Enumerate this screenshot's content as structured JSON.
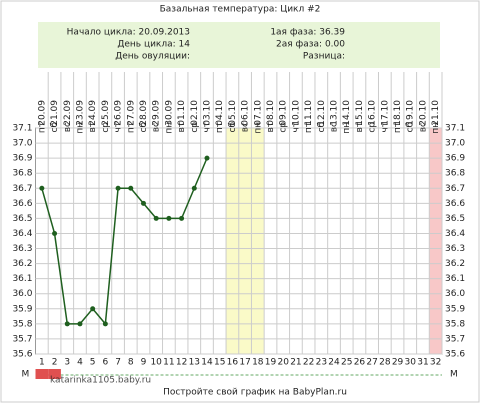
{
  "chart_data": {
    "type": "line",
    "title": "Базальная температура: Цикл #2",
    "info_left": [
      "Начало цикла: 20.09.2013",
      "День цикла: 14",
      "День овуляции:"
    ],
    "info_right": [
      "1ая фаза: 36.39",
      "2ая фаза: 0.00",
      "Разница:"
    ],
    "x": [
      1,
      2,
      3,
      4,
      5,
      6,
      7,
      8,
      9,
      10,
      11,
      12,
      13,
      14,
      15,
      16,
      17,
      18,
      19,
      20,
      21,
      22,
      23,
      24,
      25,
      26,
      27,
      28,
      29,
      30,
      31,
      32
    ],
    "dates": [
      "20.09",
      "21.09",
      "22.09",
      "23.09",
      "24.09",
      "25.09",
      "26.09",
      "27.09",
      "28.09",
      "29.09",
      "30.09",
      "01.10",
      "02.10",
      "03.10",
      "04.10",
      "05.10",
      "06.10",
      "07.10",
      "08.10",
      "09.10",
      "10.10",
      "11.10",
      "12.10",
      "13.10",
      "14.10",
      "15.10",
      "16.10",
      "17.10",
      "18.10",
      "19.10",
      "20.10",
      "21.10"
    ],
    "weekdays": [
      "пт",
      "сб",
      "вс",
      "пн",
      "вт",
      "ср",
      "чт",
      "пт",
      "сб",
      "вс",
      "пн",
      "вт",
      "ср",
      "чт",
      "пт",
      "сб",
      "вс",
      "пн",
      "вт",
      "ср",
      "чт",
      "пт",
      "сб",
      "вс",
      "пн",
      "вт",
      "ср",
      "чт",
      "пт",
      "сб",
      "вс",
      "пн"
    ],
    "series": [
      {
        "name": "Температура",
        "color": "#1f5f1f",
        "values": [
          36.7,
          36.4,
          35.8,
          35.8,
          35.9,
          35.8,
          36.7,
          36.7,
          36.6,
          36.5,
          36.5,
          36.5,
          36.7,
          36.9,
          null,
          null,
          null,
          null,
          null,
          null,
          null,
          null,
          null,
          null,
          null,
          null,
          null,
          null,
          null,
          null,
          null,
          null
        ]
      }
    ],
    "highlights": [
      {
        "color": "#fafac8",
        "days": [
          16,
          17,
          18
        ]
      },
      {
        "color": "#f8c8c8",
        "days": [
          32
        ]
      }
    ],
    "period_days": [
      1,
      2
    ],
    "period_color": "#e05050",
    "marks_label": "M",
    "xlim": [
      0.5,
      32.5
    ],
    "ylim": [
      35.6,
      37.1
    ],
    "yticks": [
      35.6,
      35.7,
      35.8,
      35.9,
      {
        "value": 36,
        "label": "36.0"
      },
      36.1,
      36.2,
      36.3,
      36.4,
      36.5,
      36.6,
      36.7,
      36.8,
      36.9,
      {
        "value": 37,
        "label": "37.0"
      },
      37.1
    ],
    "grid": true,
    "watermark": "katarinka1105.baby.ru",
    "footer": "Постройте свой график на BabyPlan.ru"
  }
}
